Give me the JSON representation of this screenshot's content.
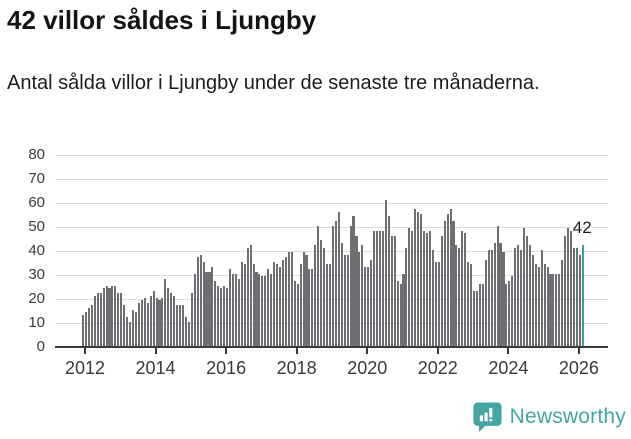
{
  "header": {
    "title": "42 villor såldes i Ljungby",
    "subtitle": "Antal sålda villor i Ljungby under de senaste tre månaderna."
  },
  "chart_data": {
    "type": "bar",
    "title": "42 villor såldes i Ljungby",
    "subtitle": "Antal sålda villor i Ljungby under de senaste tre månaderna.",
    "x_first_bar": "2012-01",
    "x_last_bar": "2026-03",
    "months_per_bar": 1,
    "x_tick_labels": [
      "2012",
      "2014",
      "2016",
      "2018",
      "2020",
      "2022",
      "2024",
      "2026"
    ],
    "y_tick_labels": [
      "0",
      "10",
      "20",
      "30",
      "40",
      "50",
      "60",
      "70",
      "80"
    ],
    "ylim": [
      0,
      80
    ],
    "grid": true,
    "legend": "none",
    "bar_color": "#6e6e73",
    "highlight_color": "#2aa6a2",
    "highlight_index_from_end": 1,
    "annotation_label": "42",
    "values": [
      13,
      14,
      16,
      17,
      21,
      22,
      22,
      24,
      25,
      24,
      25,
      25,
      22,
      22,
      17,
      12,
      10,
      15,
      14,
      18,
      19,
      20,
      18,
      21,
      23,
      20,
      19,
      20,
      28,
      24,
      22,
      21,
      17,
      17,
      17,
      12,
      10,
      22,
      30,
      37,
      38,
      35,
      31,
      31,
      33,
      27,
      25,
      24,
      25,
      24,
      32,
      30,
      30,
      28,
      35,
      34,
      41,
      42,
      34,
      31,
      30,
      29,
      29,
      32,
      30,
      35,
      34,
      33,
      36,
      37,
      39,
      39,
      27,
      26,
      34,
      39,
      38,
      32,
      32,
      42,
      50,
      44,
      41,
      34,
      34,
      50,
      52,
      56,
      43,
      38,
      38,
      50,
      54,
      46,
      39,
      42,
      33,
      33,
      36,
      48,
      48,
      48,
      48,
      61,
      54,
      46,
      46,
      27,
      26,
      30,
      41,
      49,
      48,
      57,
      56,
      55,
      48,
      47,
      48,
      40,
      35,
      35,
      46,
      52,
      55,
      57,
      52,
      42,
      41,
      48,
      47,
      35,
      34,
      23,
      23,
      26,
      26,
      36,
      40,
      40,
      43,
      50,
      43,
      39,
      26,
      27,
      29,
      41,
      42,
      40,
      49,
      46,
      42,
      38,
      34,
      33,
      40,
      34,
      33,
      30,
      30,
      30,
      30,
      36,
      46,
      49,
      48,
      41,
      41,
      38,
      42
    ]
  },
  "footer": {
    "brand": "Newsworthy",
    "brand_color": "#45a5a1",
    "logo_icon": "newsworthy-chart-bubble-icon"
  }
}
